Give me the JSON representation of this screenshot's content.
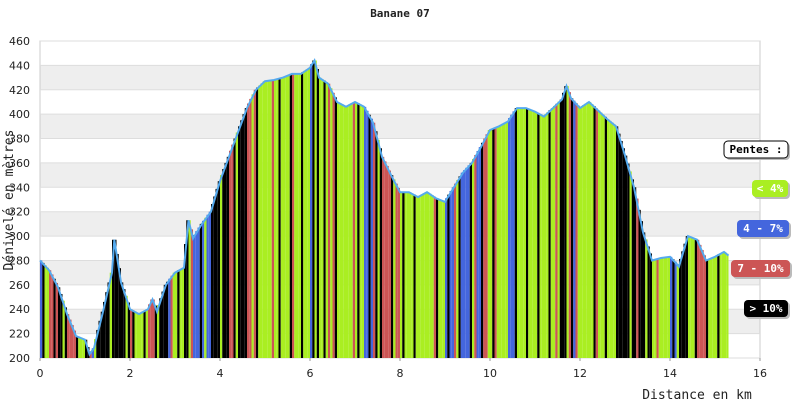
{
  "chart_data": {
    "type": "area",
    "title": "Banane 07",
    "xlabel": "Distance en km",
    "ylabel": "Dénivelé en mètres",
    "xlim": [
      0,
      16
    ],
    "ylim": [
      200,
      460
    ],
    "x_ticks": [
      0,
      2,
      4,
      6,
      8,
      10,
      12,
      14,
      16
    ],
    "y_ticks": [
      200,
      220,
      240,
      260,
      280,
      300,
      320,
      340,
      360,
      380,
      400,
      420,
      440,
      460
    ],
    "grid": "horizontal bands",
    "profile": [
      [
        0,
        280
      ],
      [
        0.2,
        272
      ],
      [
        0.4,
        258
      ],
      [
        0.6,
        236
      ],
      [
        0.8,
        218
      ],
      [
        1.0,
        215
      ],
      [
        1.1,
        203
      ],
      [
        1.2,
        208
      ],
      [
        1.4,
        238
      ],
      [
        1.6,
        270
      ],
      [
        1.65,
        297
      ],
      [
        1.8,
        262
      ],
      [
        2.0,
        240
      ],
      [
        2.2,
        236
      ],
      [
        2.4,
        240
      ],
      [
        2.5,
        248
      ],
      [
        2.6,
        238
      ],
      [
        2.8,
        260
      ],
      [
        3.0,
        270
      ],
      [
        3.2,
        274
      ],
      [
        3.3,
        313
      ],
      [
        3.4,
        298
      ],
      [
        3.6,
        310
      ],
      [
        3.8,
        320
      ],
      [
        4.0,
        345
      ],
      [
        4.2,
        365
      ],
      [
        4.4,
        385
      ],
      [
        4.6,
        405
      ],
      [
        4.8,
        420
      ],
      [
        5.0,
        427
      ],
      [
        5.2,
        428
      ],
      [
        5.4,
        430
      ],
      [
        5.6,
        433
      ],
      [
        5.8,
        433
      ],
      [
        6.0,
        438
      ],
      [
        6.1,
        444
      ],
      [
        6.2,
        430
      ],
      [
        6.4,
        425
      ],
      [
        6.6,
        410
      ],
      [
        6.8,
        406
      ],
      [
        7.0,
        410
      ],
      [
        7.2,
        406
      ],
      [
        7.4,
        393
      ],
      [
        7.6,
        365
      ],
      [
        7.8,
        350
      ],
      [
        8.0,
        336
      ],
      [
        8.2,
        336
      ],
      [
        8.4,
        332
      ],
      [
        8.6,
        336
      ],
      [
        8.8,
        331
      ],
      [
        9.0,
        328
      ],
      [
        9.2,
        340
      ],
      [
        9.4,
        352
      ],
      [
        9.6,
        360
      ],
      [
        9.8,
        373
      ],
      [
        10.0,
        387
      ],
      [
        10.2,
        390
      ],
      [
        10.4,
        394
      ],
      [
        10.6,
        405
      ],
      [
        10.8,
        405
      ],
      [
        11.0,
        402
      ],
      [
        11.2,
        398
      ],
      [
        11.4,
        405
      ],
      [
        11.6,
        412
      ],
      [
        11.7,
        423
      ],
      [
        11.8,
        413
      ],
      [
        12.0,
        405
      ],
      [
        12.2,
        410
      ],
      [
        12.4,
        403
      ],
      [
        12.6,
        396
      ],
      [
        12.8,
        390
      ],
      [
        13.0,
        366
      ],
      [
        13.2,
        340
      ],
      [
        13.4,
        303
      ],
      [
        13.6,
        280
      ],
      [
        13.8,
        282
      ],
      [
        14.0,
        283
      ],
      [
        14.2,
        275
      ],
      [
        14.4,
        300
      ],
      [
        14.6,
        297
      ],
      [
        14.8,
        280
      ],
      [
        15.0,
        283
      ],
      [
        15.2,
        287
      ],
      [
        15.3,
        284
      ]
    ],
    "legend_title": "Pentes :",
    "legend": [
      {
        "label": "< 4%",
        "color": "#aaee22",
        "text_color": "#ffffff"
      },
      {
        "label": "4 - 7%",
        "color": "#4466dd",
        "text_color": "#ffffff"
      },
      {
        "label": "7 - 10%",
        "color": "#cc5555",
        "text_color": "#ffffff"
      },
      {
        "label": "> 10%",
        "color": "#000000",
        "text_color": "#ffffff"
      }
    ],
    "line_color": "#55aaee",
    "band_color": "#eeeeee"
  }
}
